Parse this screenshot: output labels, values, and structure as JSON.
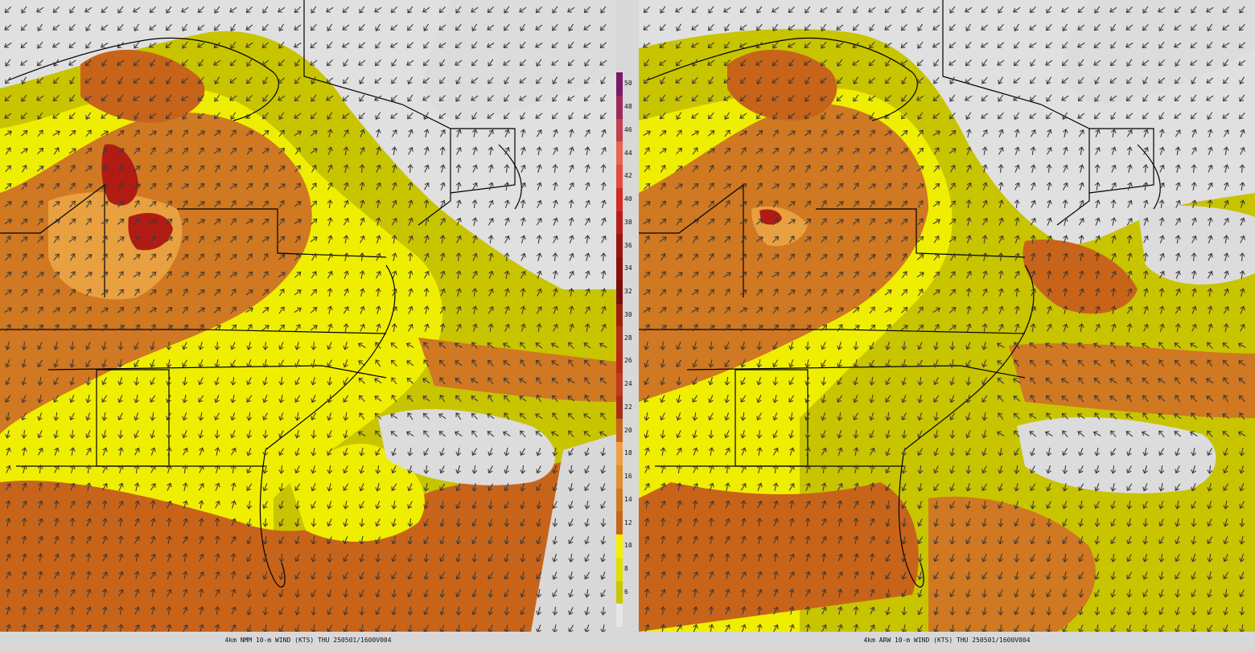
{
  "panels": [
    {
      "id": "nmm",
      "caption": "4km NMM 10-m WIND (KTS) THU 250501/1600V004"
    },
    {
      "id": "arw",
      "caption": "4km ARW 10-m WIND (KTS) THU 250501/1600V004"
    }
  ],
  "colorbar": {
    "unit": "KTS",
    "levels": [
      {
        "value": "50",
        "color": "#7a1a6a"
      },
      {
        "value": "48",
        "color": "#9c2a5a"
      },
      {
        "value": "46",
        "color": "#c04050"
      },
      {
        "value": "44",
        "color": "#e86450"
      },
      {
        "value": "42",
        "color": "#e44a3a"
      },
      {
        "value": "40",
        "color": "#d42a20"
      },
      {
        "value": "38",
        "color": "#b81c18"
      },
      {
        "value": "36",
        "color": "#9a1410"
      },
      {
        "value": "34",
        "color": "#8a1008"
      },
      {
        "value": "32",
        "color": "#7a0c06"
      },
      {
        "value": "30",
        "color": "#9c2010"
      },
      {
        "value": "28",
        "color": "#b03018"
      },
      {
        "value": "26",
        "color": "#b82818"
      },
      {
        "value": "24",
        "color": "#c03a22"
      },
      {
        "value": "22",
        "color": "#a82c14"
      },
      {
        "value": "20",
        "color": "#c8641c"
      },
      {
        "value": "18",
        "color": "#f0a040"
      },
      {
        "value": "16",
        "color": "#e0902c"
      },
      {
        "value": "14",
        "color": "#d07820"
      },
      {
        "value": "12",
        "color": "#c86418"
      },
      {
        "value": "10",
        "color": "#f0f000"
      },
      {
        "value": "8",
        "color": "#e0e000"
      },
      {
        "value": "6",
        "color": "#c8c800"
      },
      {
        "value": "",
        "color": "#e6e6e6"
      }
    ]
  },
  "colors": {
    "background": "#d8d8d8",
    "calm": "#dcdcdc",
    "light_yellow": "#f0ee00",
    "olive_yellow": "#c8c400",
    "orange_light": "#e8a040",
    "orange": "#d07822",
    "orange_dark": "#c8641a",
    "red": "#b01c14",
    "boundary": "#000000",
    "arrow": "#3a3a3a"
  }
}
